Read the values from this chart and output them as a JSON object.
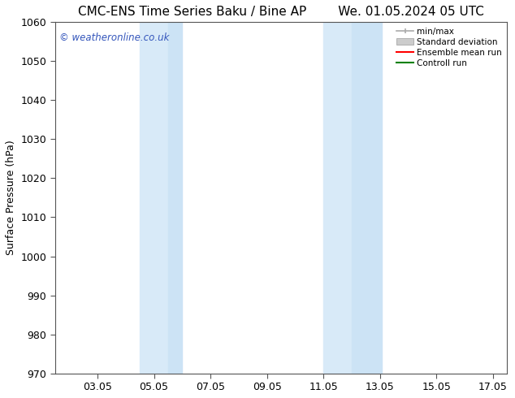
{
  "title": "CMC-ENS Time Series Baku / Bine AP        We. 01.05.2024 05 UTC",
  "ylabel": "Surface Pressure (hPa)",
  "xlim": [
    1.5,
    17.5
  ],
  "ylim": [
    970,
    1060
  ],
  "yticks": [
    970,
    980,
    990,
    1000,
    1010,
    1020,
    1030,
    1040,
    1050,
    1060
  ],
  "xtick_labels": [
    "03.05",
    "05.05",
    "07.05",
    "09.05",
    "11.05",
    "13.05",
    "15.05",
    "17.05"
  ],
  "xtick_positions": [
    3,
    5,
    7,
    9,
    11,
    13,
    15,
    17
  ],
  "band1_x0": 4.5,
  "band1_x1": 5.5,
  "band1b_x0": 5.5,
  "band1b_x1": 6.0,
  "band2_x0": 11.0,
  "band2_x1": 12.0,
  "band2b_x0": 12.0,
  "band2b_x1": 13.05,
  "band_color": "#d8eaf8",
  "band_color2": "#cce3f5",
  "watermark": "© weatheronline.co.uk",
  "watermark_color": "#3355bb",
  "legend_labels": [
    "min/max",
    "Standard deviation",
    "Ensemble mean run",
    "Controll run"
  ],
  "legend_colors": [
    "#aaaaaa",
    "#cccccc",
    "#ff0000",
    "#008000"
  ],
  "bg_color": "#ffffff",
  "title_fontsize": 11,
  "label_fontsize": 9,
  "tick_fontsize": 9
}
